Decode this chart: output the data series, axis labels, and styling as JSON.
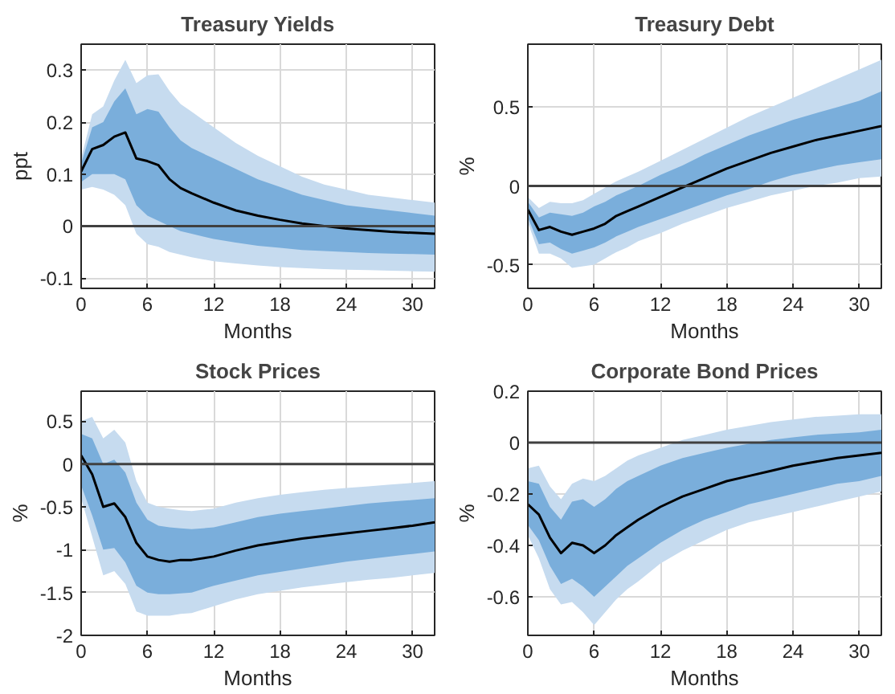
{
  "chart_data": [
    {
      "type": "line",
      "title": "Treasury Yields",
      "xlabel": "Months",
      "ylabel": "ppt",
      "xlim": [
        0,
        32
      ],
      "xticks": [
        0,
        6,
        12,
        18,
        24,
        30
      ],
      "ylim": [
        -0.12,
        0.35
      ],
      "yticks": [
        -0.1,
        0,
        0.1,
        0.2,
        0.3
      ],
      "grid": true,
      "x": [
        0,
        1,
        2,
        3,
        4,
        5,
        6,
        7,
        8,
        9,
        10,
        12,
        14,
        16,
        18,
        20,
        22,
        24,
        26,
        28,
        30,
        32
      ],
      "ref_lines": [
        {
          "axis": "y",
          "value": 0,
          "color": "#404040"
        }
      ],
      "series": [
        {
          "color": "#c6dbef",
          "values": [
            null,
            null,
            null,
            null,
            null,
            null,
            null,
            null,
            null,
            null,
            null,
            null,
            null,
            null,
            null,
            null,
            null,
            null,
            null,
            null,
            null,
            null
          ],
          "lower": [
            0.07,
            0.075,
            0.07,
            0.06,
            0.04,
            -0.015,
            -0.035,
            -0.04,
            -0.05,
            -0.055,
            -0.06,
            -0.068,
            -0.072,
            -0.076,
            -0.079,
            -0.081,
            -0.083,
            -0.084,
            -0.085,
            -0.086,
            -0.087,
            -0.088
          ],
          "upper": [
            0.13,
            0.215,
            0.23,
            0.28,
            0.32,
            0.275,
            0.29,
            0.292,
            0.26,
            0.235,
            0.22,
            0.19,
            0.16,
            0.135,
            0.115,
            0.095,
            0.08,
            0.07,
            0.06,
            0.055,
            0.05,
            0.045
          ]
        },
        {
          "color": "#7aaedb",
          "values": [
            null,
            null,
            null,
            null,
            null,
            null,
            null,
            null,
            null,
            null,
            null,
            null,
            null,
            null,
            null,
            null,
            null,
            null,
            null,
            null,
            null,
            null
          ],
          "lower": [
            0.085,
            0.1,
            0.1,
            0.1,
            0.09,
            0.04,
            0.02,
            0.01,
            0.0,
            -0.01,
            -0.015,
            -0.025,
            -0.032,
            -0.038,
            -0.042,
            -0.046,
            -0.048,
            -0.05,
            -0.052,
            -0.053,
            -0.054,
            -0.055
          ],
          "upper": [
            0.12,
            0.19,
            0.2,
            0.24,
            0.265,
            0.215,
            0.225,
            0.22,
            0.19,
            0.165,
            0.15,
            0.13,
            0.11,
            0.09,
            0.075,
            0.06,
            0.05,
            0.04,
            0.035,
            0.03,
            0.025,
            0.02
          ]
        },
        {
          "color": "#000000",
          "values": [
            0.105,
            0.148,
            0.156,
            0.172,
            0.18,
            0.13,
            0.125,
            0.117,
            0.09,
            0.073,
            0.063,
            0.045,
            0.03,
            0.02,
            0.012,
            0.005,
            0.0,
            -0.005,
            -0.008,
            -0.011,
            -0.013,
            -0.015
          ]
        }
      ]
    },
    {
      "type": "line",
      "title": "Treasury Debt",
      "xlabel": "Months",
      "ylabel": "%",
      "xlim": [
        0,
        32
      ],
      "xticks": [
        0,
        6,
        12,
        18,
        24,
        30
      ],
      "ylim": [
        -0.65,
        0.9
      ],
      "yticks": [
        -0.5,
        0,
        0.5
      ],
      "grid": true,
      "x": [
        0,
        1,
        2,
        3,
        4,
        5,
        6,
        7,
        8,
        9,
        10,
        12,
        14,
        16,
        18,
        20,
        22,
        24,
        26,
        28,
        30,
        32
      ],
      "ref_lines": [
        {
          "axis": "y",
          "value": 0,
          "color": "#404040"
        }
      ],
      "series": [
        {
          "color": "#c6dbef",
          "values": [
            null,
            null,
            null,
            null,
            null,
            null,
            null,
            null,
            null,
            null,
            null,
            null,
            null,
            null,
            null,
            null,
            null,
            null,
            null,
            null,
            null,
            null
          ],
          "lower": [
            -0.23,
            -0.43,
            -0.43,
            -0.46,
            -0.52,
            -0.51,
            -0.5,
            -0.46,
            -0.42,
            -0.39,
            -0.35,
            -0.3,
            -0.24,
            -0.19,
            -0.14,
            -0.1,
            -0.06,
            -0.03,
            0.0,
            0.02,
            0.05,
            0.06
          ],
          "upper": [
            -0.07,
            -0.14,
            -0.1,
            -0.11,
            -0.11,
            -0.09,
            -0.05,
            -0.01,
            0.03,
            0.06,
            0.09,
            0.16,
            0.23,
            0.3,
            0.37,
            0.44,
            0.5,
            0.56,
            0.62,
            0.68,
            0.74,
            0.8
          ]
        },
        {
          "color": "#7aaedb",
          "values": [
            null,
            null,
            null,
            null,
            null,
            null,
            null,
            null,
            null,
            null,
            null,
            null,
            null,
            null,
            null,
            null,
            null,
            null,
            null,
            null,
            null,
            null
          ],
          "lower": [
            -0.2,
            -0.37,
            -0.36,
            -0.4,
            -0.43,
            -0.41,
            -0.39,
            -0.36,
            -0.32,
            -0.29,
            -0.26,
            -0.21,
            -0.16,
            -0.11,
            -0.06,
            -0.02,
            0.03,
            0.07,
            0.1,
            0.13,
            0.15,
            0.17
          ],
          "upper": [
            -0.1,
            -0.2,
            -0.17,
            -0.18,
            -0.19,
            -0.17,
            -0.13,
            -0.1,
            -0.06,
            -0.03,
            0.0,
            0.07,
            0.13,
            0.2,
            0.26,
            0.32,
            0.37,
            0.42,
            0.46,
            0.5,
            0.54,
            0.6
          ]
        },
        {
          "color": "#000000",
          "values": [
            -0.15,
            -0.28,
            -0.26,
            -0.29,
            -0.31,
            -0.29,
            -0.27,
            -0.24,
            -0.19,
            -0.16,
            -0.13,
            -0.07,
            -0.01,
            0.05,
            0.11,
            0.16,
            0.21,
            0.25,
            0.29,
            0.32,
            0.35,
            0.38
          ]
        }
      ]
    },
    {
      "type": "line",
      "title": "Stock Prices",
      "xlabel": "Months",
      "ylabel": "%",
      "xlim": [
        0,
        32
      ],
      "xticks": [
        0,
        6,
        12,
        18,
        24,
        30
      ],
      "ylim": [
        -2,
        0.85
      ],
      "yticks": [
        -2,
        -1.5,
        -1,
        -0.5,
        0,
        0.5
      ],
      "grid": true,
      "x": [
        0,
        1,
        2,
        3,
        4,
        5,
        6,
        7,
        8,
        9,
        10,
        12,
        14,
        16,
        18,
        20,
        22,
        24,
        26,
        28,
        30,
        32
      ],
      "ref_lines": [
        {
          "axis": "y",
          "value": 0,
          "color": "#404040"
        }
      ],
      "series": [
        {
          "color": "#c6dbef",
          "values": [
            null,
            null,
            null,
            null,
            null,
            null,
            null,
            null,
            null,
            null,
            null,
            null,
            null,
            null,
            null,
            null,
            null,
            null,
            null,
            null,
            null,
            null
          ],
          "lower": [
            -0.4,
            -0.85,
            -1.3,
            -1.25,
            -1.4,
            -1.72,
            -1.77,
            -1.77,
            -1.77,
            -1.75,
            -1.74,
            -1.66,
            -1.58,
            -1.52,
            -1.48,
            -1.44,
            -1.41,
            -1.38,
            -1.35,
            -1.33,
            -1.3,
            -1.27
          ],
          "upper": [
            0.5,
            0.55,
            0.3,
            0.4,
            0.25,
            -0.2,
            -0.45,
            -0.5,
            -0.52,
            -0.54,
            -0.55,
            -0.52,
            -0.45,
            -0.4,
            -0.36,
            -0.33,
            -0.3,
            -0.28,
            -0.26,
            -0.24,
            -0.22,
            -0.2
          ]
        },
        {
          "color": "#7aaedb",
          "values": [
            null,
            null,
            null,
            null,
            null,
            null,
            null,
            null,
            null,
            null,
            null,
            null,
            null,
            null,
            null,
            null,
            null,
            null,
            null,
            null,
            null,
            null
          ],
          "lower": [
            -0.25,
            -0.6,
            -1.0,
            -0.98,
            -1.15,
            -1.42,
            -1.5,
            -1.52,
            -1.52,
            -1.51,
            -1.5,
            -1.42,
            -1.36,
            -1.3,
            -1.26,
            -1.22,
            -1.18,
            -1.14,
            -1.11,
            -1.08,
            -1.05,
            -1.02
          ],
          "upper": [
            0.35,
            0.3,
            0.0,
            0.05,
            -0.1,
            -0.45,
            -0.65,
            -0.72,
            -0.74,
            -0.75,
            -0.76,
            -0.74,
            -0.68,
            -0.62,
            -0.58,
            -0.55,
            -0.52,
            -0.49,
            -0.46,
            -0.44,
            -0.42,
            -0.4
          ]
        },
        {
          "color": "#000000",
          "values": [
            0.1,
            -0.12,
            -0.5,
            -0.46,
            -0.62,
            -0.92,
            -1.08,
            -1.12,
            -1.14,
            -1.12,
            -1.12,
            -1.08,
            -1.01,
            -0.95,
            -0.91,
            -0.87,
            -0.84,
            -0.81,
            -0.78,
            -0.75,
            -0.72,
            -0.68
          ]
        }
      ]
    },
    {
      "type": "line",
      "title": "Corporate Bond Prices",
      "xlabel": "Months",
      "ylabel": "%",
      "xlim": [
        0,
        32
      ],
      "xticks": [
        0,
        6,
        12,
        18,
        24,
        30
      ],
      "ylim": [
        -0.75,
        0.2
      ],
      "yticks": [
        -0.6,
        -0.4,
        -0.2,
        0,
        0.2
      ],
      "grid": true,
      "x": [
        0,
        1,
        2,
        3,
        4,
        5,
        6,
        7,
        8,
        9,
        10,
        12,
        14,
        16,
        18,
        20,
        22,
        24,
        26,
        28,
        30,
        32
      ],
      "ref_lines": [
        {
          "axis": "y",
          "value": 0,
          "color": "#404040"
        }
      ],
      "series": [
        {
          "color": "#c6dbef",
          "values": [
            null,
            null,
            null,
            null,
            null,
            null,
            null,
            null,
            null,
            null,
            null,
            null,
            null,
            null,
            null,
            null,
            null,
            null,
            null,
            null,
            null,
            null
          ],
          "lower": [
            -0.36,
            -0.45,
            -0.57,
            -0.63,
            -0.62,
            -0.66,
            -0.71,
            -0.66,
            -0.61,
            -0.57,
            -0.54,
            -0.47,
            -0.42,
            -0.38,
            -0.34,
            -0.31,
            -0.29,
            -0.27,
            -0.25,
            -0.23,
            -0.21,
            -0.19
          ],
          "upper": [
            -0.1,
            -0.09,
            -0.17,
            -0.22,
            -0.16,
            -0.14,
            -0.15,
            -0.13,
            -0.1,
            -0.07,
            -0.05,
            -0.02,
            0.01,
            0.03,
            0.05,
            0.065,
            0.08,
            0.09,
            0.1,
            0.105,
            0.11,
            0.11
          ]
        },
        {
          "color": "#7aaedb",
          "values": [
            null,
            null,
            null,
            null,
            null,
            null,
            null,
            null,
            null,
            null,
            null,
            null,
            null,
            null,
            null,
            null,
            null,
            null,
            null,
            null,
            null,
            null
          ],
          "lower": [
            -0.32,
            -0.38,
            -0.48,
            -0.55,
            -0.53,
            -0.56,
            -0.6,
            -0.56,
            -0.52,
            -0.48,
            -0.45,
            -0.39,
            -0.34,
            -0.3,
            -0.27,
            -0.24,
            -0.22,
            -0.2,
            -0.18,
            -0.16,
            -0.15,
            -0.13
          ],
          "upper": [
            -0.15,
            -0.16,
            -0.25,
            -0.3,
            -0.23,
            -0.22,
            -0.25,
            -0.22,
            -0.18,
            -0.15,
            -0.13,
            -0.09,
            -0.06,
            -0.04,
            -0.02,
            -0.005,
            0.01,
            0.02,
            0.03,
            0.035,
            0.04,
            0.05
          ]
        },
        {
          "color": "#000000",
          "values": [
            -0.24,
            -0.28,
            -0.37,
            -0.43,
            -0.39,
            -0.4,
            -0.43,
            -0.4,
            -0.36,
            -0.33,
            -0.3,
            -0.25,
            -0.21,
            -0.18,
            -0.15,
            -0.13,
            -0.11,
            -0.09,
            -0.075,
            -0.06,
            -0.05,
            -0.04
          ]
        }
      ]
    }
  ]
}
